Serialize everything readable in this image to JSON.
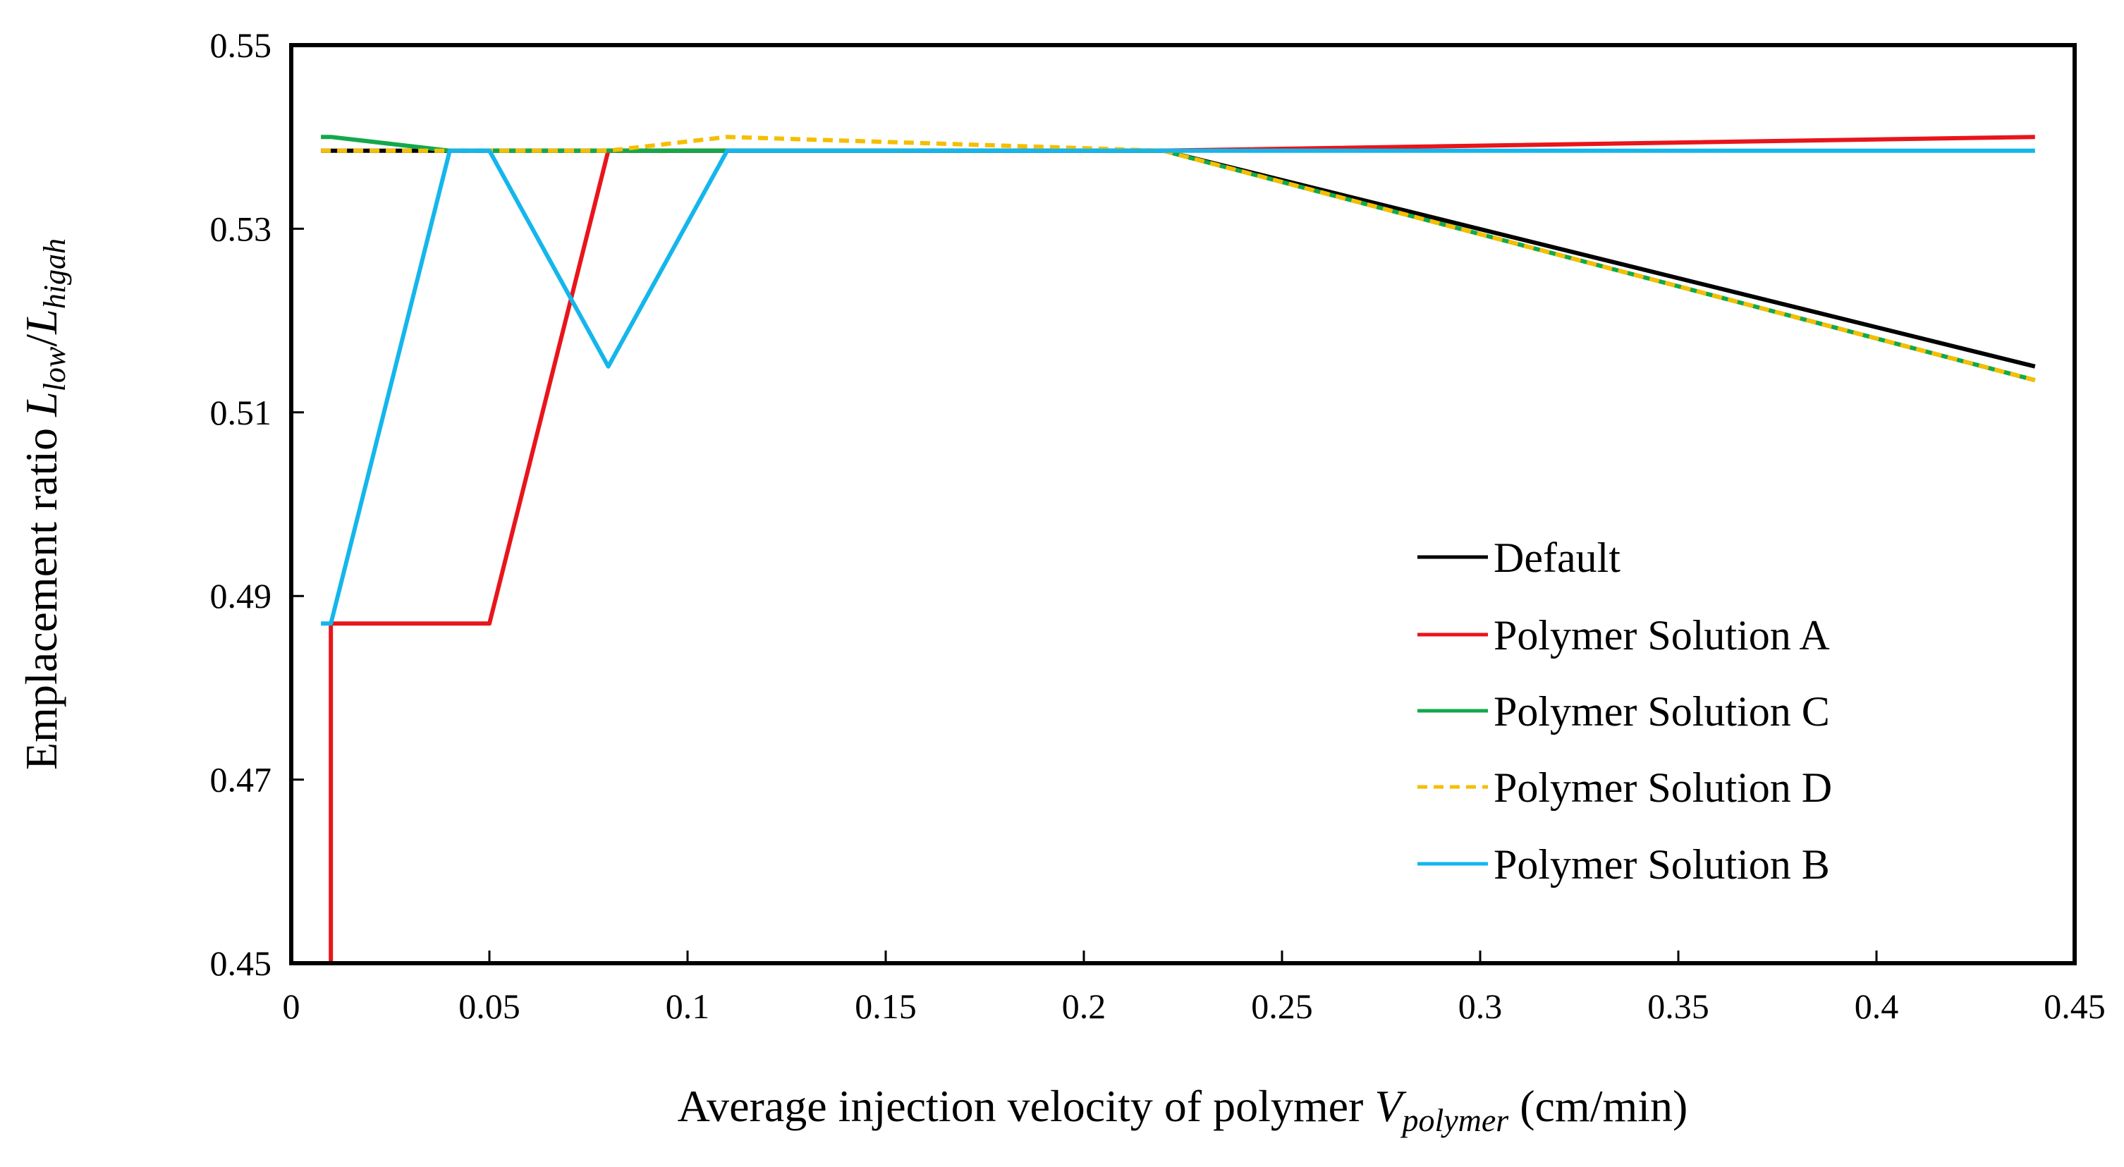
{
  "chart_data": {
    "type": "line",
    "title": "",
    "xlabel": {
      "prefix": "Average injection velocity of polymer ",
      "var": "V",
      "sub": "polymer",
      "suffix": " (cm/min)"
    },
    "ylabel": {
      "prefix": "Emplacement ratio ",
      "num_var": "L",
      "num_sub": "low",
      "slash": "/",
      "den_var": "L",
      "den_sub": "higah"
    },
    "xlim": [
      0,
      0.45
    ],
    "ylim": [
      0.45,
      0.55
    ],
    "xticks": [
      0,
      0.05,
      0.1,
      0.15,
      0.2,
      0.25,
      0.3,
      0.35,
      0.4,
      0.45
    ],
    "xtick_labels": [
      "0",
      "0.05",
      "0.1",
      "0.15",
      "0.2",
      "0.25",
      "0.3",
      "0.35",
      "0.4",
      "0.45"
    ],
    "yticks": [
      0.45,
      0.47,
      0.49,
      0.51,
      0.53,
      0.55
    ],
    "ytick_labels": [
      "0.45",
      "0.47",
      "0.49",
      "0.51",
      "0.53",
      "0.55"
    ],
    "grid": false,
    "legend_position": "right-center",
    "series": [
      {
        "name": "Default",
        "color": "#000000",
        "dash": "",
        "x": [
          0.0075,
          0.01,
          0.04,
          0.05,
          0.08,
          0.11,
          0.22,
          0.44
        ],
        "y": [
          0.5385,
          0.5385,
          0.5385,
          0.5385,
          0.5385,
          0.5385,
          0.5385,
          0.515
        ]
      },
      {
        "name": "Polymer Solution A",
        "color": "#e8151b",
        "dash": "",
        "x": [
          0.01,
          0.01,
          0.05,
          0.08,
          0.11,
          0.22,
          0.44
        ],
        "y": [
          0.45,
          0.487,
          0.487,
          0.5385,
          0.5385,
          0.5385,
          0.54
        ]
      },
      {
        "name": "Polymer Solution C",
        "color": "#13a84a",
        "dash": "",
        "x": [
          0.0075,
          0.01,
          0.04,
          0.05,
          0.08,
          0.11,
          0.22,
          0.44
        ],
        "y": [
          0.54,
          0.54,
          0.5385,
          0.5385,
          0.5385,
          0.5385,
          0.5385,
          0.5135
        ]
      },
      {
        "name": "Polymer Solution D",
        "color": "#f5be00",
        "dash": "14 9",
        "x": [
          0.0075,
          0.01,
          0.04,
          0.05,
          0.08,
          0.11,
          0.22,
          0.44
        ],
        "y": [
          0.5385,
          0.5385,
          0.5385,
          0.5385,
          0.5385,
          0.54,
          0.5385,
          0.5135
        ]
      },
      {
        "name": "Polymer Solution B",
        "color": "#14b6ec",
        "dash": "",
        "x": [
          0.0075,
          0.01,
          0.04,
          0.05,
          0.08,
          0.11,
          0.22,
          0.44
        ],
        "y": [
          0.487,
          0.487,
          0.5385,
          0.5385,
          0.515,
          0.5385,
          0.5385,
          0.5385
        ]
      }
    ],
    "legend_order": [
      0,
      1,
      2,
      3,
      4
    ]
  }
}
